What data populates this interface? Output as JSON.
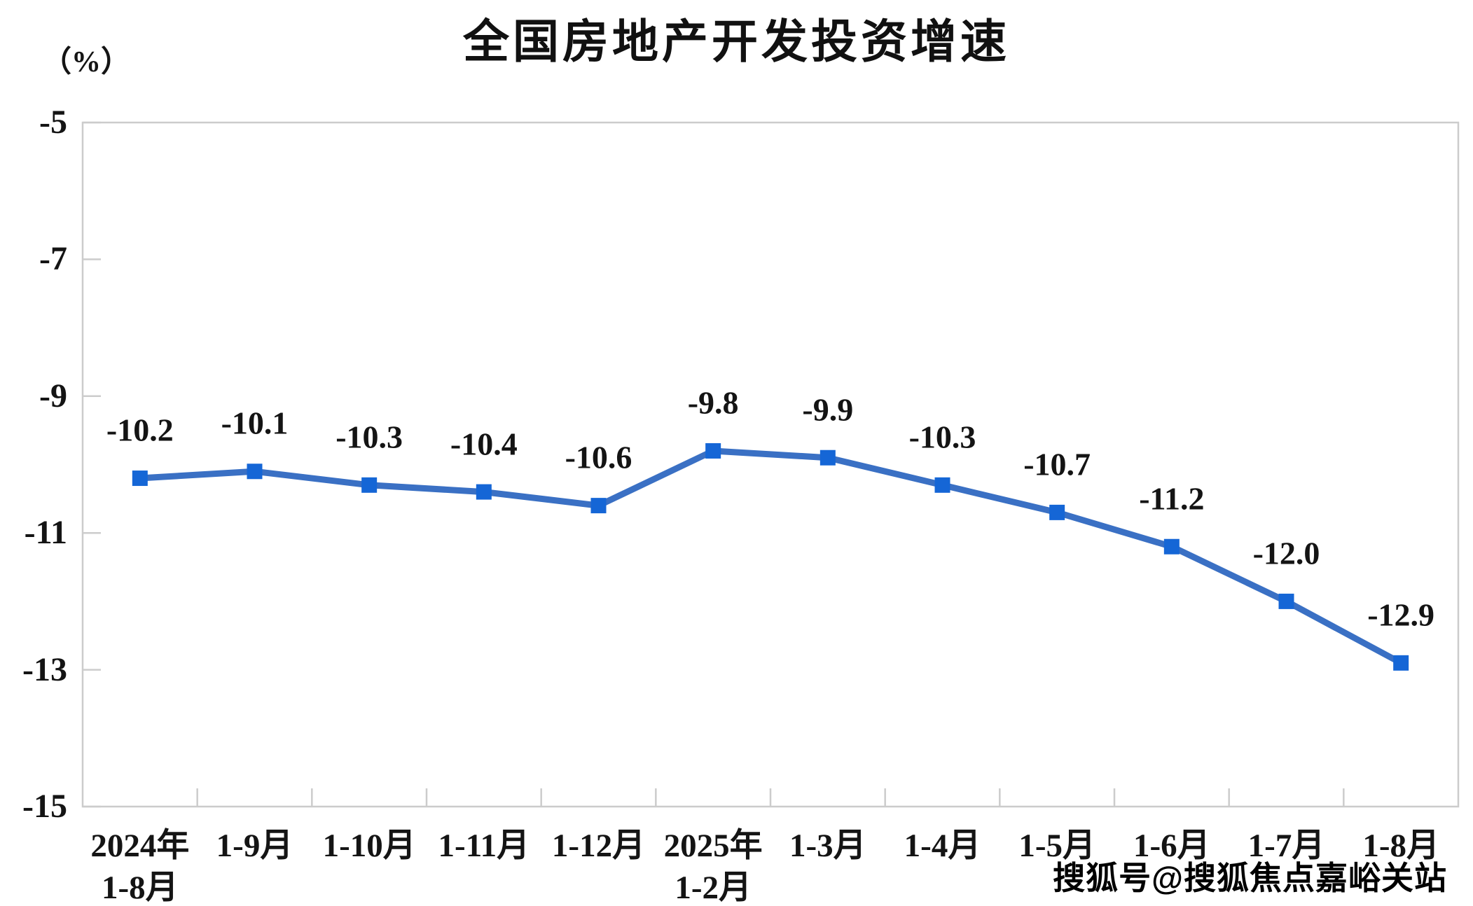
{
  "title": "全国房地产开发投资增速",
  "y_axis_unit": "（%）",
  "watermark": "搜狐号@搜狐焦点嘉峪关站",
  "chart_data": {
    "type": "line",
    "title": "全国房地产开发投资增速",
    "ylabel": "（%）",
    "categories": [
      "2024年\n1-8月",
      "1-9月",
      "1-10月",
      "1-11月",
      "1-12月",
      "2025年\n1-2月",
      "1-3月",
      "1-4月",
      "1-5月",
      "1-6月",
      "1-7月",
      "1-8月"
    ],
    "values": [
      -10.2,
      -10.1,
      -10.3,
      -10.4,
      -10.6,
      -9.8,
      -9.9,
      -10.3,
      -10.7,
      -11.2,
      -12.0,
      -12.9
    ],
    "data_labels": [
      "-10.2",
      "-10.1",
      "-10.3",
      "-10.4",
      "-10.6",
      "-9.8",
      "-9.9",
      "-10.3",
      "-10.7",
      "-11.2",
      "-12.0",
      "-12.9"
    ],
    "yticks": [
      -5,
      -7,
      -9,
      -11,
      -13,
      -15
    ],
    "ylim": [
      -15,
      -5
    ],
    "grid": false,
    "legend": "none",
    "line_color": "#3A70C4",
    "marker_color": "#1566D6",
    "marker_shape": "square",
    "axis_color": "#CCCCCC"
  }
}
